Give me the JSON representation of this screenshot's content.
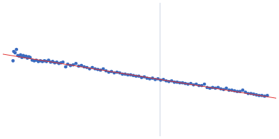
{
  "chart_data": {
    "type": "scatter",
    "xlim": [
      0,
      400
    ],
    "ylim": [
      0,
      200
    ],
    "tick_labels": false,
    "grid": false,
    "reference_x": 230,
    "reference_color": "#cdd5e3",
    "series": [
      {
        "type": "scatter",
        "marker": "circle",
        "color": "#3a6bbf",
        "x": [
          15,
          16,
          18,
          20,
          22,
          24,
          26,
          28,
          30,
          32,
          34,
          36,
          38,
          40,
          43,
          46,
          49,
          52,
          55,
          58,
          61,
          64,
          67,
          70,
          73,
          76,
          79,
          82,
          85,
          88,
          92,
          95,
          99,
          103,
          107,
          111,
          115,
          119,
          123,
          127,
          131,
          135,
          139,
          143,
          147,
          151,
          155,
          159,
          163,
          167,
          171,
          175,
          179,
          183,
          187,
          191,
          195,
          199,
          203,
          207,
          211,
          215,
          219,
          223,
          227,
          231,
          235,
          239,
          243,
          247,
          251,
          255,
          259,
          263,
          267,
          271,
          275,
          279,
          283,
          287,
          291,
          295,
          299,
          303,
          307,
          311,
          315,
          319,
          323,
          327,
          331,
          335,
          339,
          343,
          347,
          351,
          355,
          359,
          363,
          367,
          371,
          375,
          379,
          383,
          387
        ],
        "values": [
          113,
          127,
          125,
          130,
          121,
          120,
          122,
          118,
          121,
          119,
          120,
          117,
          119,
          118,
          114,
          113,
          114,
          112,
          113,
          112,
          113,
          112,
          114,
          111,
          112,
          110,
          111,
          109,
          110,
          111,
          104,
          108,
          106,
          107,
          109,
          105,
          106,
          104,
          103,
          101,
          103,
          101,
          100,
          99,
          101,
          98,
          96,
          97,
          95,
          96,
          95,
          93,
          93,
          92,
          92,
          91,
          90,
          90,
          88,
          89,
          87,
          86,
          87,
          85,
          86,
          84,
          85,
          83,
          82,
          83,
          81,
          81,
          80,
          80,
          79,
          78,
          79,
          77,
          78,
          76,
          76,
          78,
          73,
          72,
          73,
          72,
          73,
          71,
          70,
          72,
          69,
          69,
          68,
          67,
          67,
          69,
          66,
          64,
          64,
          63,
          62,
          61,
          61,
          60,
          61
        ]
      },
      {
        "type": "line",
        "line_style": "solid",
        "color": "#e03030",
        "x": [
          0,
          400
        ],
        "values": [
          123,
          57
        ]
      }
    ]
  }
}
